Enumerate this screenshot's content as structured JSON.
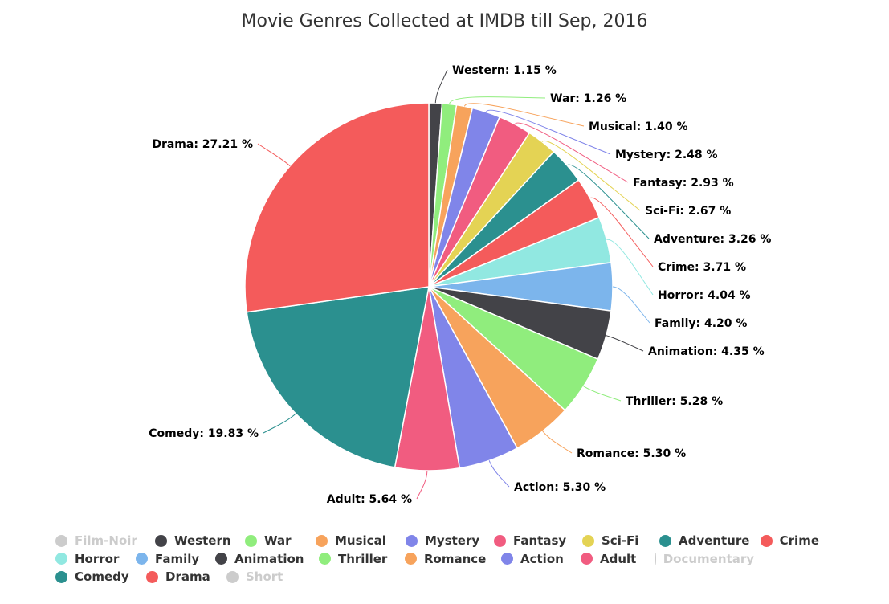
{
  "chart_data": {
    "type": "pie",
    "title": "Movie Genres Collected at IMDB till Sep, 2016",
    "unit": "%",
    "slices": [
      {
        "name": "Western",
        "value": 1.15,
        "color": "#434348",
        "label": "Western: 1.15 %"
      },
      {
        "name": "War",
        "value": 1.26,
        "color": "#90ed7d",
        "label": "War: 1.26 %"
      },
      {
        "name": "Musical",
        "value": 1.4,
        "color": "#f7a35c",
        "label": "Musical: 1.40 %"
      },
      {
        "name": "Mystery",
        "value": 2.48,
        "color": "#8085e9",
        "label": "Mystery: 2.48 %"
      },
      {
        "name": "Fantasy",
        "value": 2.93,
        "color": "#f15c80",
        "label": "Fantasy: 2.93 %"
      },
      {
        "name": "Sci-Fi",
        "value": 2.67,
        "color": "#e4d354",
        "label": "Sci-Fi: 2.67 %"
      },
      {
        "name": "Adventure",
        "value": 3.26,
        "color": "#2b908f",
        "label": "Adventure: 3.26 %"
      },
      {
        "name": "Crime",
        "value": 3.71,
        "color": "#f45b5b",
        "label": "Crime: 3.71 %"
      },
      {
        "name": "Horror",
        "value": 4.04,
        "color": "#91e8e1",
        "label": "Horror: 4.04 %"
      },
      {
        "name": "Family",
        "value": 4.2,
        "color": "#7cb5ec",
        "label": "Family: 4.20 %"
      },
      {
        "name": "Animation",
        "value": 4.35,
        "color": "#434348",
        "label": "Animation: 4.35 %"
      },
      {
        "name": "Thriller",
        "value": 5.28,
        "color": "#90ed7d",
        "label": "Thriller: 5.28 %"
      },
      {
        "name": "Romance",
        "value": 5.3,
        "color": "#f7a35c",
        "label": "Romance: 5.30 %"
      },
      {
        "name": "Action",
        "value": 5.3,
        "color": "#8085e9",
        "label": "Action: 5.30 %"
      },
      {
        "name": "Adult",
        "value": 5.64,
        "color": "#f15c80",
        "label": "Adult: 5.64 %"
      },
      {
        "name": "Comedy",
        "value": 19.83,
        "color": "#2b908f",
        "label": "Comedy: 19.83 %"
      },
      {
        "name": "Drama",
        "value": 27.21,
        "color": "#f45b5b",
        "label": "Drama: 27.21 %"
      }
    ],
    "legend": {
      "placement": "bottom",
      "rows": [
        [
          {
            "name": "Film-Noir",
            "color": "#cccccc",
            "hidden": true
          },
          {
            "name": "Western",
            "color": "#434348",
            "hidden": false
          },
          {
            "name": "War",
            "color": "#90ed7d",
            "hidden": false
          },
          {
            "name": "Musical",
            "color": "#f7a35c",
            "hidden": false
          },
          {
            "name": "Mystery",
            "color": "#8085e9",
            "hidden": false
          },
          {
            "name": "Fantasy",
            "color": "#f15c80",
            "hidden": false
          },
          {
            "name": "Sci-Fi",
            "color": "#e4d354",
            "hidden": false
          },
          {
            "name": "Adventure",
            "color": "#2b908f",
            "hidden": false
          },
          {
            "name": "Crime",
            "color": "#f45b5b",
            "hidden": false
          }
        ],
        [
          {
            "name": "Horror",
            "color": "#91e8e1",
            "hidden": false
          },
          {
            "name": "Family",
            "color": "#7cb5ec",
            "hidden": false
          },
          {
            "name": "Animation",
            "color": "#434348",
            "hidden": false
          },
          {
            "name": "Thriller",
            "color": "#90ed7d",
            "hidden": false
          },
          {
            "name": "Romance",
            "color": "#f7a35c",
            "hidden": false
          },
          {
            "name": "Action",
            "color": "#8085e9",
            "hidden": false
          },
          {
            "name": "Adult",
            "color": "#f15c80",
            "hidden": false
          },
          {
            "name": "Documentary",
            "color": "#cccccc",
            "hidden": true
          }
        ],
        [
          {
            "name": "Comedy",
            "color": "#2b908f",
            "hidden": false
          },
          {
            "name": "Drama",
            "color": "#f45b5b",
            "hidden": false
          },
          {
            "name": "Short",
            "color": "#cccccc",
            "hidden": true
          }
        ]
      ]
    }
  }
}
